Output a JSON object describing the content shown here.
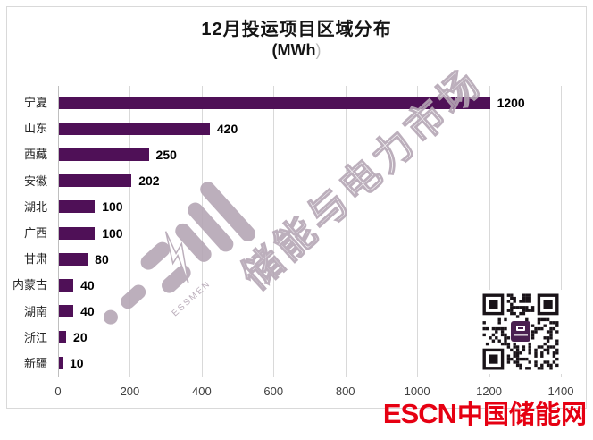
{
  "title": {
    "line1": "12月投运项目区域分布",
    "line2_main": "(MWh",
    "line2_close": ")"
  },
  "chart_data": {
    "type": "bar",
    "orientation": "horizontal",
    "title": "12月投运项目区域分布 (MWh)",
    "categories": [
      "宁夏",
      "山东",
      "西藏",
      "安徽",
      "湖北",
      "广西",
      "甘肃",
      "内蒙古",
      "湖南",
      "浙江",
      "新疆"
    ],
    "values": [
      1200,
      420,
      250,
      202,
      100,
      100,
      80,
      40,
      40,
      20,
      10
    ],
    "x_ticks": [
      0,
      200,
      400,
      600,
      800,
      1000,
      1200,
      1400
    ],
    "xlim": [
      0,
      1400
    ],
    "bar_color": "#4F1057",
    "grid": true,
    "value_labels_shown": true,
    "legend": "none"
  },
  "watermark": {
    "text": "储能与电力市场",
    "logo": "battery-lightning-icon",
    "sub_text": "ESSMEN",
    "color": "#b5a7b5"
  },
  "footer_logo": {
    "escn": "ESCN",
    "chinese": "中国储能网",
    "color": "#e60012"
  }
}
